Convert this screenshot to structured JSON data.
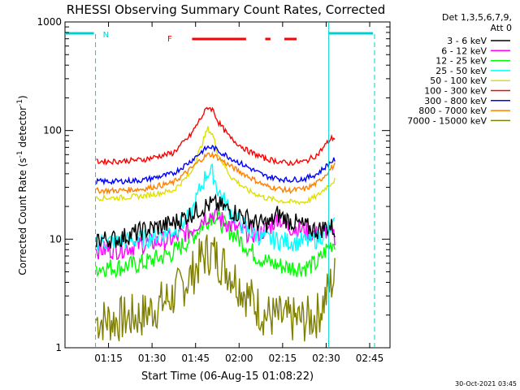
{
  "chart_data": {
    "type": "line",
    "title": "RHESSI Observing Summary Count Rates, Corrected",
    "xlabel": "Start Time (06-Aug-15 01:08:22)",
    "ylabel_main": "Corrected Count Rate (s",
    "ylabel_sup1": "-1",
    "ylabel_mid": " detector",
    "ylabel_sup2": "-1",
    "ylabel_end": ")",
    "yscale": "log",
    "ylim": [
      1,
      1000
    ],
    "xlim_minutes": [
      1.0,
      2.8667
    ],
    "xticks": [
      {
        "t": 1.25,
        "label": "01:15"
      },
      {
        "t": 1.5,
        "label": "01:30"
      },
      {
        "t": 1.75,
        "label": "01:45"
      },
      {
        "t": 2.0,
        "label": "02:00"
      },
      {
        "t": 2.25,
        "label": "02:15"
      },
      {
        "t": 2.5,
        "label": "02:30"
      },
      {
        "t": 2.75,
        "label": "02:45"
      }
    ],
    "yticks": [
      {
        "v": 1,
        "label": "1"
      },
      {
        "v": 10,
        "label": "10"
      },
      {
        "v": 100,
        "label": "100"
      },
      {
        "v": 1000,
        "label": "1000"
      }
    ],
    "legend_header_line1": "Det 1,3,5,6,7,9,",
    "legend_header_line2": "Att 0",
    "legend_position": "right",
    "series": [
      {
        "name": "3 - 6 keV",
        "color": "#000000",
        "x": [
          1.18,
          1.3,
          1.45,
          1.62,
          1.72,
          1.8,
          1.85,
          1.9,
          2.0,
          2.1,
          2.18,
          2.22,
          2.28,
          2.38,
          2.45,
          2.5,
          2.53,
          2.55
        ],
        "y": [
          10,
          10,
          12,
          14,
          17,
          20,
          21,
          20,
          17,
          14,
          14,
          17,
          15,
          13,
          12,
          13,
          13,
          12
        ]
      },
      {
        "name": "6 - 12 keV",
        "color": "#ff00ff",
        "x": [
          1.18,
          1.3,
          1.45,
          1.62,
          1.72,
          1.8,
          1.85,
          1.9,
          2.0,
          2.1,
          2.18,
          2.22,
          2.28,
          2.38,
          2.45,
          2.5,
          2.53,
          2.55
        ],
        "y": [
          8,
          8,
          9,
          10,
          12,
          16,
          17,
          15,
          12,
          11,
          13,
          16,
          13,
          12,
          11,
          12,
          11,
          10
        ]
      },
      {
        "name": "12 - 25 keV",
        "color": "#00ff00",
        "x": [
          1.18,
          1.3,
          1.45,
          1.62,
          1.72,
          1.8,
          1.85,
          1.9,
          2.0,
          2.1,
          2.18,
          2.28,
          2.38,
          2.45,
          2.5,
          2.53,
          2.55
        ],
        "y": [
          5.5,
          5.5,
          6,
          7.5,
          10,
          14,
          17,
          14,
          10,
          7,
          6,
          5.5,
          5.5,
          6,
          8,
          9,
          9.5
        ]
      },
      {
        "name": "25 - 50 keV",
        "color": "#00ffff",
        "x": [
          1.18,
          1.3,
          1.45,
          1.62,
          1.72,
          1.78,
          1.82,
          1.85,
          1.88,
          1.95,
          2.05,
          2.15,
          2.28,
          2.38,
          2.45,
          2.5,
          2.53,
          2.55
        ],
        "y": [
          9.5,
          9.5,
          10,
          12,
          16,
          30,
          42,
          40,
          28,
          18,
          12,
          10,
          9.5,
          9.5,
          10,
          12,
          13,
          13
        ]
      },
      {
        "name": "50 - 100 keV",
        "color": "#e0e000",
        "x": [
          1.18,
          1.3,
          1.45,
          1.62,
          1.72,
          1.78,
          1.82,
          1.85,
          1.88,
          1.95,
          2.05,
          2.15,
          2.28,
          2.38,
          2.45,
          2.5,
          2.53,
          2.55
        ],
        "y": [
          24,
          24,
          25,
          28,
          40,
          70,
          105,
          90,
          60,
          38,
          28,
          24,
          22,
          22,
          25,
          30,
          33,
          35
        ]
      },
      {
        "name": "100 - 300 keV",
        "color": "#ff0000",
        "x": [
          1.18,
          1.3,
          1.45,
          1.62,
          1.72,
          1.78,
          1.82,
          1.85,
          1.88,
          1.95,
          2.05,
          2.15,
          2.28,
          2.38,
          2.45,
          2.5,
          2.53,
          2.55
        ],
        "y": [
          52,
          52,
          54,
          62,
          90,
          130,
          165,
          155,
          120,
          85,
          65,
          55,
          50,
          52,
          60,
          75,
          85,
          85
        ]
      },
      {
        "name": "300 - 800 keV",
        "color": "#0000ff",
        "x": [
          1.18,
          1.3,
          1.45,
          1.62,
          1.72,
          1.78,
          1.82,
          1.85,
          1.88,
          1.95,
          2.05,
          2.15,
          2.28,
          2.38,
          2.45,
          2.5,
          2.53,
          2.55
        ],
        "y": [
          34,
          34,
          35,
          40,
          52,
          63,
          70,
          70,
          65,
          56,
          46,
          38,
          35,
          36,
          40,
          47,
          52,
          54
        ]
      },
      {
        "name": "800 - 7000 keV",
        "color": "#ff8000",
        "x": [
          1.18,
          1.3,
          1.45,
          1.62,
          1.72,
          1.78,
          1.82,
          1.85,
          1.88,
          1.95,
          2.05,
          2.15,
          2.28,
          2.38,
          2.45,
          2.5,
          2.53,
          2.55
        ],
        "y": [
          28,
          28,
          29,
          33,
          44,
          54,
          60,
          60,
          56,
          47,
          38,
          31,
          28,
          29,
          33,
          40,
          45,
          48
        ]
      },
      {
        "name": "7000 - 15000 keV",
        "color": "#808000",
        "x": [
          1.18,
          1.3,
          1.45,
          1.62,
          1.72,
          1.78,
          1.82,
          1.85,
          1.88,
          1.95,
          2.05,
          2.15,
          2.28,
          2.38,
          2.45,
          2.5,
          2.53,
          2.55
        ],
        "y": [
          1.8,
          1.8,
          2.0,
          3.0,
          4.5,
          6.5,
          7.5,
          7.5,
          6.5,
          5.0,
          3.0,
          2.0,
          1.8,
          1.8,
          2.0,
          3.0,
          4.0,
          4.5
        ]
      }
    ],
    "flag_N": {
      "label": "N",
      "color": "#00d0d0"
    },
    "flag_F": {
      "label": "F",
      "color": "#ff0000"
    },
    "timestamp": "30-Oct-2021 03:45"
  }
}
